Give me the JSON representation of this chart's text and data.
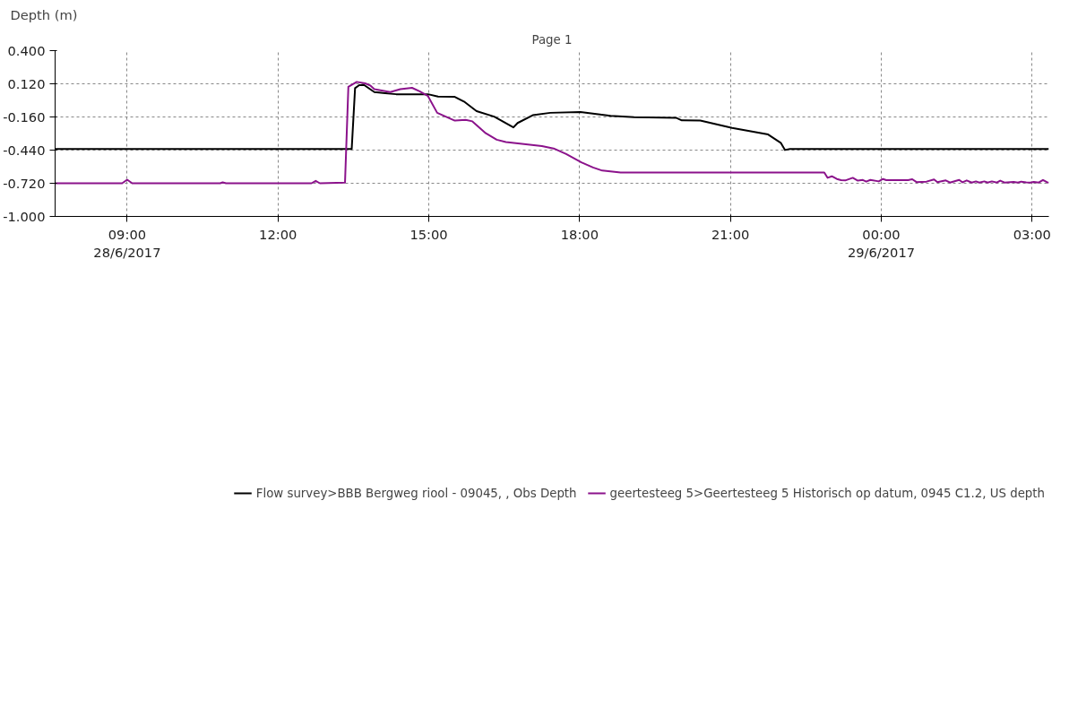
{
  "chart_data": {
    "type": "line",
    "title": "Page 1",
    "ylabel": "Depth (m)",
    "xlim": [
      "2017-06-28T07:34",
      "2017-06-29T03:20"
    ],
    "xticks": [
      {
        "value": "2017-06-28T09:00",
        "label": "09:00\n28/6/2017"
      },
      {
        "value": "2017-06-28T12:00",
        "label": "12:00"
      },
      {
        "value": "2017-06-28T15:00",
        "label": "15:00"
      },
      {
        "value": "2017-06-28T18:00",
        "label": "18:00"
      },
      {
        "value": "2017-06-28T21:00",
        "label": "21:00"
      },
      {
        "value": "2017-06-29T00:00",
        "label": "00:00\n29/6/2017"
      },
      {
        "value": "2017-06-29T03:00",
        "label": "03:00"
      }
    ],
    "ylim": [
      -1.0,
      0.4
    ],
    "yticks": [
      {
        "value": 0.4,
        "label": "0.400"
      },
      {
        "value": 0.12,
        "label": "0.120"
      },
      {
        "value": -0.16,
        "label": "-0.160"
      },
      {
        "value": -0.44,
        "label": "-0.440"
      },
      {
        "value": -0.72,
        "label": "-0.720"
      },
      {
        "value": -1.0,
        "label": "-1.000"
      }
    ],
    "grid": true,
    "legend": "bottom",
    "marker": "none",
    "line_style": "solid",
    "series": [
      {
        "name": "Flow survey>BBB Bergweg riool - 09045, , Obs Depth",
        "color": "#000000",
        "x": [
          "2017-06-28T07:34",
          "2017-06-28T13:28",
          "2017-06-28T13:32",
          "2017-06-28T13:37",
          "2017-06-28T13:43",
          "2017-06-28T13:55",
          "2017-06-28T14:08",
          "2017-06-28T14:21",
          "2017-06-28T14:59",
          "2017-06-28T15:11",
          "2017-06-28T15:31",
          "2017-06-28T15:42",
          "2017-06-28T15:57",
          "2017-06-28T16:18",
          "2017-06-28T16:41",
          "2017-06-28T16:46",
          "2017-06-28T17:04",
          "2017-06-28T17:25",
          "2017-06-28T18:01",
          "2017-06-28T18:37",
          "2017-06-28T19:05",
          "2017-06-28T19:55",
          "2017-06-28T20:02",
          "2017-06-28T20:24",
          "2017-06-28T21:02",
          "2017-06-28T21:45",
          "2017-06-28T22:00",
          "2017-06-28T22:05",
          "2017-06-28T22:11",
          "2017-06-29T03:20"
        ],
        "values": [
          -0.43,
          -0.43,
          0.083,
          0.109,
          0.109,
          0.05,
          0.04,
          0.032,
          0.032,
          0.012,
          0.01,
          -0.03,
          -0.111,
          -0.157,
          -0.248,
          -0.211,
          -0.145,
          -0.125,
          -0.119,
          -0.151,
          -0.161,
          -0.167,
          -0.189,
          -0.191,
          -0.252,
          -0.308,
          -0.378,
          -0.439,
          -0.43,
          -0.43
        ]
      },
      {
        "name": "geertesteeg 5>Geertesteeg 5 Historisch op datum, 0945 C1.2, US depth",
        "color": "#8b128b",
        "x": [
          "2017-06-28T07:34",
          "2017-06-28T08:54",
          "2017-06-28T09:00",
          "2017-06-28T09:06",
          "2017-06-28T10:51",
          "2017-06-28T10:54",
          "2017-06-28T10:58",
          "2017-06-28T12:40",
          "2017-06-28T12:45",
          "2017-06-28T12:50",
          "2017-06-28T13:20",
          "2017-06-28T13:24",
          "2017-06-28T13:34",
          "2017-06-28T13:44",
          "2017-06-28T13:50",
          "2017-06-28T13:55",
          "2017-06-28T14:14",
          "2017-06-28T14:26",
          "2017-06-28T14:40",
          "2017-06-28T14:49",
          "2017-06-28T14:59",
          "2017-06-28T15:10",
          "2017-06-28T15:31",
          "2017-06-28T15:44",
          "2017-06-28T15:52",
          "2017-06-28T16:08",
          "2017-06-28T16:21",
          "2017-06-28T16:32",
          "2017-06-28T17:15",
          "2017-06-28T17:29",
          "2017-06-28T17:44",
          "2017-06-28T18:02",
          "2017-06-28T18:16",
          "2017-06-28T18:27",
          "2017-06-28T18:49",
          "2017-06-28T22:52",
          "2017-06-28T22:56",
          "2017-06-28T23:01",
          "2017-06-28T23:07",
          "2017-06-28T23:12",
          "2017-06-28T23:17",
          "2017-06-28T23:26",
          "2017-06-28T23:32",
          "2017-06-28T23:38",
          "2017-06-28T23:42",
          "2017-06-28T23:47",
          "2017-06-28T23:57",
          "2017-06-29T00:02",
          "2017-06-29T00:06",
          "2017-06-29T00:32",
          "2017-06-29T00:37",
          "2017-06-29T00:42",
          "2017-06-29T00:54",
          "2017-06-29T01:03",
          "2017-06-29T01:07",
          "2017-06-29T01:17",
          "2017-06-29T01:22",
          "2017-06-29T01:33",
          "2017-06-29T01:37",
          "2017-06-29T01:42",
          "2017-06-29T01:48",
          "2017-06-29T01:53",
          "2017-06-29T01:57",
          "2017-06-29T02:03",
          "2017-06-29T02:07",
          "2017-06-29T02:12",
          "2017-06-29T02:18",
          "2017-06-29T02:22",
          "2017-06-29T02:27",
          "2017-06-29T02:38",
          "2017-06-29T02:43",
          "2017-06-29T02:47",
          "2017-06-29T02:53",
          "2017-06-29T02:58",
          "2017-06-29T03:02",
          "2017-06-29T03:08",
          "2017-06-29T03:13",
          "2017-06-29T03:18",
          "2017-06-29T03:20"
        ],
        "values": [
          -0.72,
          -0.72,
          -0.69,
          -0.72,
          -0.72,
          -0.712,
          -0.72,
          -0.72,
          -0.7,
          -0.72,
          -0.714,
          0.094,
          0.136,
          0.124,
          0.106,
          0.074,
          0.05,
          0.074,
          0.086,
          0.056,
          0.016,
          -0.125,
          -0.191,
          -0.185,
          -0.197,
          -0.298,
          -0.352,
          -0.372,
          -0.406,
          -0.426,
          -0.473,
          -0.543,
          -0.587,
          -0.613,
          -0.629,
          -0.629,
          -0.674,
          -0.661,
          -0.684,
          -0.694,
          -0.696,
          -0.674,
          -0.698,
          -0.692,
          -0.706,
          -0.692,
          -0.704,
          -0.684,
          -0.694,
          -0.694,
          -0.686,
          -0.71,
          -0.706,
          -0.688,
          -0.71,
          -0.696,
          -0.714,
          -0.692,
          -0.712,
          -0.696,
          -0.714,
          -0.704,
          -0.714,
          -0.704,
          -0.714,
          -0.704,
          -0.714,
          -0.698,
          -0.714,
          -0.708,
          -0.714,
          -0.706,
          -0.712,
          -0.714,
          -0.708,
          -0.714,
          -0.692,
          -0.712,
          -0.714
        ]
      }
    ]
  }
}
